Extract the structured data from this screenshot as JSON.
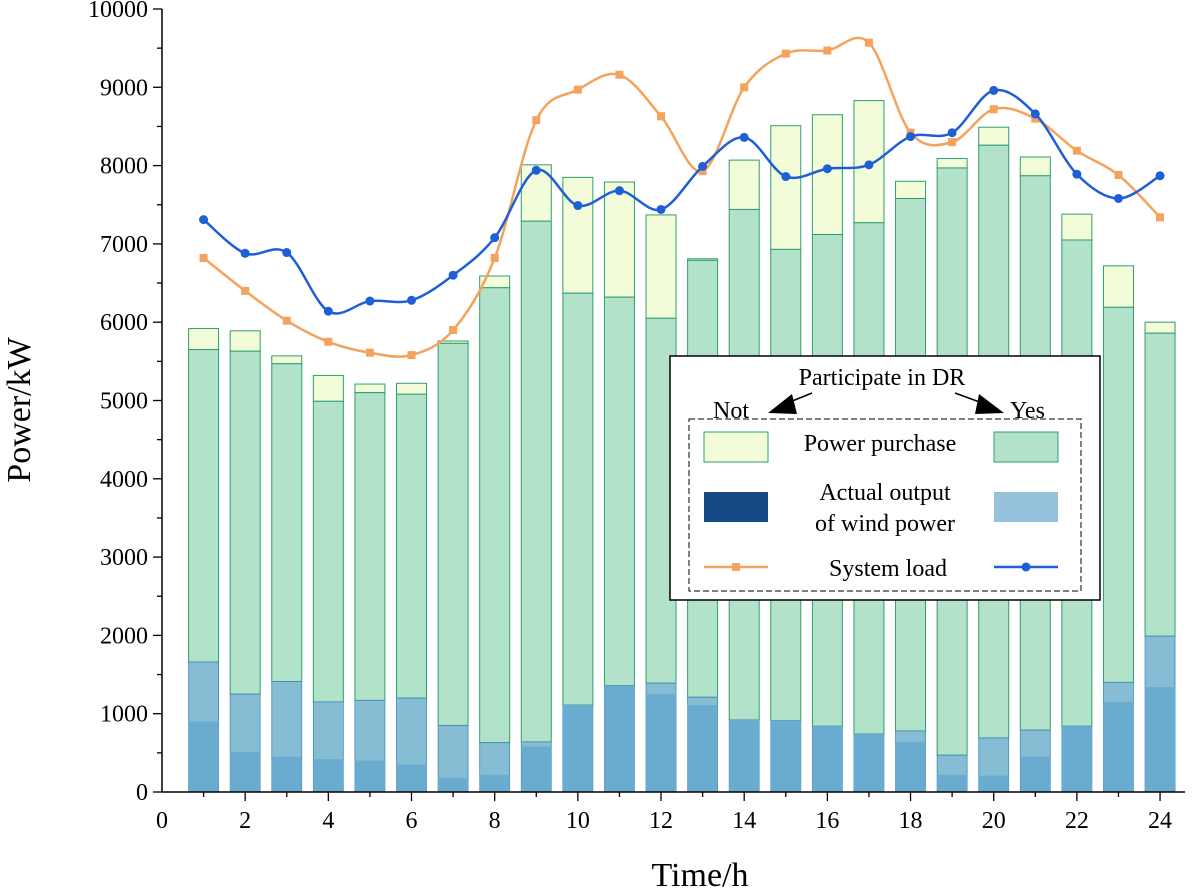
{
  "chart_data": {
    "type": "bar",
    "title": "",
    "xlabel": "Time/h",
    "ylabel": "Power/kW",
    "xlim": [
      0,
      24.6
    ],
    "ylim": [
      0,
      10000
    ],
    "x_ticks": [
      0,
      2,
      4,
      6,
      8,
      10,
      12,
      14,
      16,
      18,
      20,
      22,
      24
    ],
    "y_ticks": [
      0,
      1000,
      2000,
      3000,
      4000,
      5000,
      6000,
      7000,
      8000,
      9000,
      10000
    ],
    "hours": [
      1,
      2,
      3,
      4,
      5,
      6,
      7,
      8,
      9,
      10,
      11,
      12,
      13,
      14,
      15,
      16,
      17,
      18,
      19,
      20,
      21,
      22,
      23,
      24
    ],
    "stacked_bars": {
      "total": [
        5920,
        5890,
        5570,
        5320,
        5210,
        5220,
        5760,
        6590,
        8010,
        7850,
        7790,
        7370,
        6810,
        8070,
        8510,
        8650,
        8830,
        7800,
        8090,
        8490,
        8110,
        7380,
        6720,
        6000
      ],
      "green_top": [
        5650,
        5630,
        5470,
        4990,
        5100,
        5080,
        5730,
        6440,
        7290,
        6370,
        6320,
        6050,
        6790,
        7440,
        6930,
        7120,
        7270,
        7580,
        7970,
        8260,
        7870,
        7050,
        6190,
        5860
      ],
      "wind_not": [
        1660,
        1250,
        1410,
        1150,
        1170,
        1200,
        850,
        630,
        640,
        1110,
        1360,
        1390,
        1210,
        920,
        910,
        840,
        740,
        780,
        470,
        690,
        790,
        840,
        1400,
        1990
      ],
      "wind_yes": [
        900,
        510,
        450,
        420,
        400,
        350,
        180,
        220,
        580,
        1110,
        1360,
        1250,
        1110,
        920,
        910,
        840,
        740,
        640,
        220,
        210,
        450,
        840,
        1150,
        1340
      ]
    },
    "series": [
      {
        "name": "System load (Not participate in DR)",
        "color": "#f5a25c",
        "marker": "square",
        "values": [
          6820,
          6400,
          6020,
          5750,
          5610,
          5580,
          5900,
          6820,
          8580,
          8970,
          9160,
          8630,
          7930,
          9000,
          9430,
          9470,
          9570,
          8420,
          8300,
          8720,
          8600,
          8190,
          7880,
          7340
        ]
      },
      {
        "name": "System load (Participate in DR)",
        "color": "#1f5fd6",
        "marker": "circle",
        "values": [
          7310,
          6880,
          6890,
          6140,
          6270,
          6280,
          6600,
          7080,
          7940,
          7490,
          7680,
          7440,
          7990,
          8360,
          7860,
          7960,
          8010,
          8370,
          8420,
          8960,
          8660,
          7890,
          7580,
          7870
        ]
      }
    ],
    "colors": {
      "purchase_not": "#f2fcd8",
      "purchase_yes": "#b2e2c9",
      "bar_edge": "#2f9e6e",
      "wind_light": "#86bcd4",
      "wind_dark": "#6aaccf",
      "wind_edge": "#3c8fba",
      "legend_wind_not": "#154a87",
      "legend_wind_yes": "#96c2dc"
    },
    "legend": {
      "header": "Participate in DR",
      "not_label": "Not",
      "yes_label": "Yes",
      "purchase_label": "Power purchase",
      "wind_line1": "Actual output",
      "wind_line2": "of wind power",
      "load_label": "System load",
      "position": "center-right"
    }
  }
}
